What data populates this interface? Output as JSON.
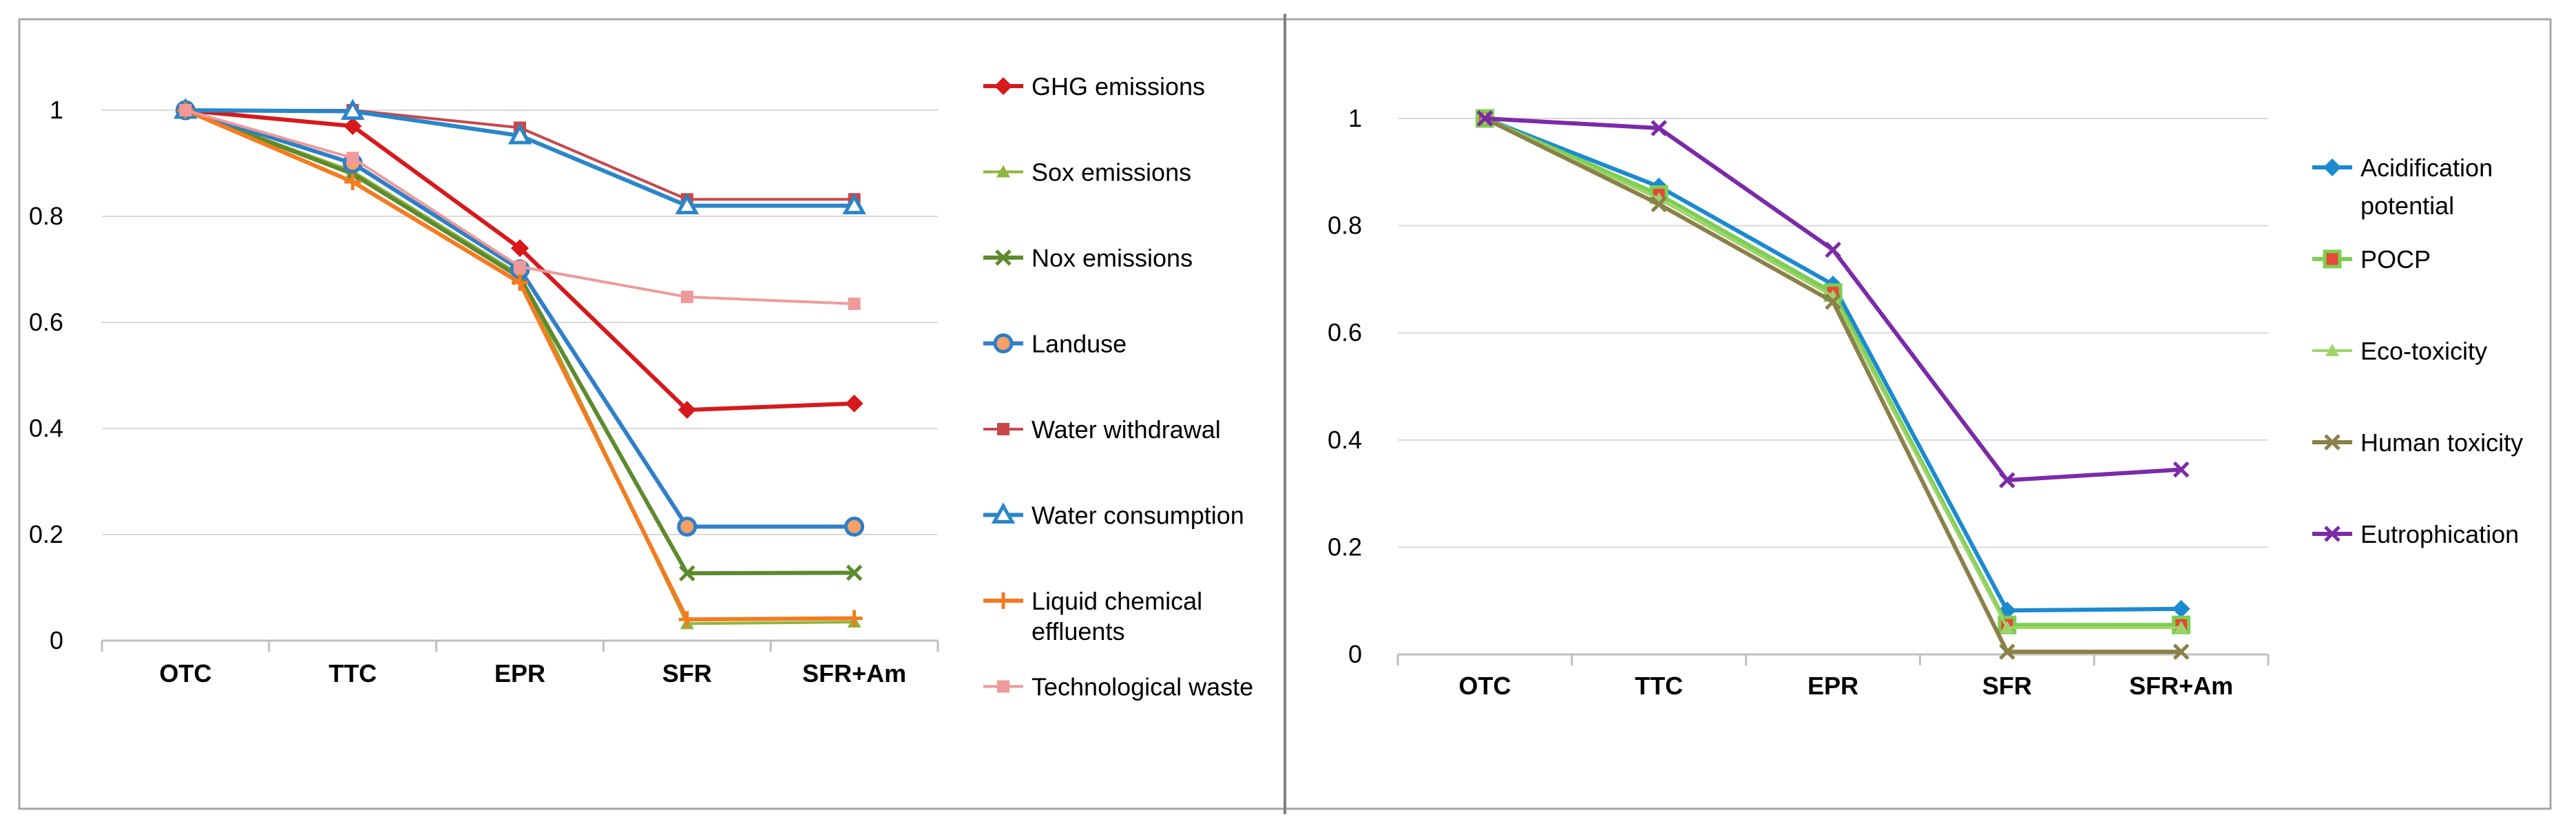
{
  "chart_data": [
    {
      "type": "line",
      "categories": [
        "OTC",
        "TTC",
        "EPR",
        "SFR",
        "SFR+Am"
      ],
      "ylim": [
        0,
        1
      ],
      "yticks": [
        0,
        0.2,
        0.4,
        0.6,
        0.8,
        1
      ],
      "ytick_labels": [
        "0",
        "0.2",
        "0.4",
        "0.6",
        "0.8",
        "1"
      ],
      "grid": "horizontal",
      "legend": "right",
      "series": [
        {
          "name": "GHG emissions",
          "color": "#d7191c",
          "marker": "diamond",
          "width": "thick",
          "values": [
            1,
            0.97,
            0.74,
            0.435,
            0.447
          ]
        },
        {
          "name": "Sox emissions",
          "color": "#8db63c",
          "marker": "triangle",
          "width": "thin",
          "values": [
            1,
            0.885,
            0.69,
            0.032,
            0.035
          ]
        },
        {
          "name": "Nox emissions",
          "color": "#5e8a2e",
          "marker": "x",
          "width": "thick",
          "values": [
            1,
            0.88,
            0.685,
            0.127,
            0.128
          ]
        },
        {
          "name": "Landuse",
          "color": "#2f7fc9",
          "marker": "circle",
          "width": "thick",
          "values": [
            1,
            0.9,
            0.7,
            0.215,
            0.215
          ]
        },
        {
          "name": "Water withdrawal",
          "color": "#c8474b",
          "marker": "square",
          "width": "thin",
          "values": [
            1,
            1,
            0.967,
            0.832,
            0.832
          ]
        },
        {
          "name": "Water consumption",
          "color": "#2a86c8",
          "marker": "triangle-open",
          "width": "thick",
          "values": [
            1,
            0.998,
            0.952,
            0.82,
            0.82
          ]
        },
        {
          "name": "Liquid chemical effluents",
          "legend_lines": [
            "Liquid chemical",
            "effluents"
          ],
          "color": "#f47b20",
          "marker": "plus",
          "width": "thick",
          "values": [
            1,
            0.865,
            0.675,
            0.04,
            0.042
          ]
        },
        {
          "name": "Technological waste",
          "color": "#ef9a9a",
          "marker": "square",
          "width": "thin",
          "values": [
            1,
            0.91,
            0.705,
            0.648,
            0.635
          ]
        }
      ]
    },
    {
      "type": "line",
      "categories": [
        "OTC",
        "TTC",
        "EPR",
        "SFR",
        "SFR+Am"
      ],
      "ylim": [
        0,
        1
      ],
      "yticks": [
        0,
        0.2,
        0.4,
        0.6,
        0.8,
        1
      ],
      "ytick_labels": [
        "0",
        "0.2",
        "0.4",
        "0.6",
        "0.8",
        "1"
      ],
      "grid": "horizontal",
      "legend": "right",
      "series": [
        {
          "name": "Acidification potential",
          "legend_lines": [
            "Acidification",
            "potential"
          ],
          "color": "#1b8ad1",
          "marker": "diamond",
          "width": "thick",
          "values": [
            1,
            0.873,
            0.69,
            0.082,
            0.085
          ]
        },
        {
          "name": "POCP",
          "color": "#7ccf52",
          "marker": "square-red",
          "width": "thick",
          "values": [
            1,
            0.858,
            0.675,
            0.055,
            0.055
          ]
        },
        {
          "name": "Eco-toxicity",
          "color": "#9fd36a",
          "marker": "triangle",
          "width": "thin",
          "values": [
            1,
            0.85,
            0.668,
            0.05,
            0.05
          ]
        },
        {
          "name": "Human toxicity",
          "color": "#8b8048",
          "marker": "x",
          "width": "thick",
          "values": [
            1,
            0.84,
            0.658,
            0.005,
            0.005
          ]
        },
        {
          "name": "Eutrophication",
          "color": "#7b2aa8",
          "marker": "x",
          "width": "thick",
          "values": [
            1,
            0.982,
            0.755,
            0.325,
            0.345
          ]
        }
      ]
    }
  ]
}
